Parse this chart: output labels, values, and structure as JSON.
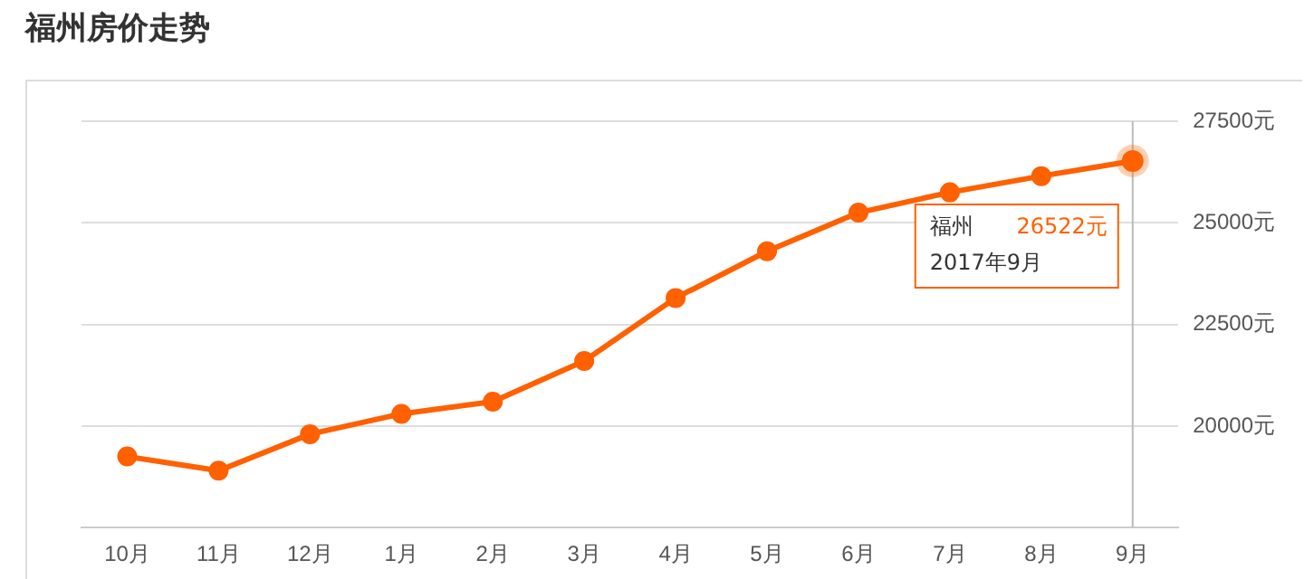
{
  "chart_data": {
    "type": "line",
    "title": "福州房价走势",
    "categories": [
      "10月",
      "11月",
      "12月",
      "1月",
      "2月",
      "3月",
      "4月",
      "5月",
      "6月",
      "7月",
      "8月",
      "9月"
    ],
    "series": [
      {
        "name": "福州",
        "color": "#ff6000",
        "values": [
          19250,
          18900,
          19800,
          20300,
          20600,
          21600,
          23150,
          24300,
          25250,
          25750,
          26150,
          26522
        ],
        "value_labels": [
          null,
          null,
          null,
          null,
          null,
          null,
          null,
          null,
          null,
          null,
          null,
          "26522元"
        ]
      }
    ],
    "ylim": [
      17500,
      27500
    ],
    "yticks": [
      {
        "value": 20000,
        "label": "20000元"
      },
      {
        "value": 22500,
        "label": "22500元"
      },
      {
        "value": 25000,
        "label": "25000元"
      },
      {
        "value": 27500,
        "label": "27500元"
      }
    ],
    "ref_lines": [
      {
        "axis": "x",
        "value": "9月",
        "color": "#bbbbbb"
      }
    ],
    "annotations": [
      "2017年9月"
    ],
    "grid": "y",
    "marker": "circle",
    "line_style": "solid",
    "legend": false
  }
}
